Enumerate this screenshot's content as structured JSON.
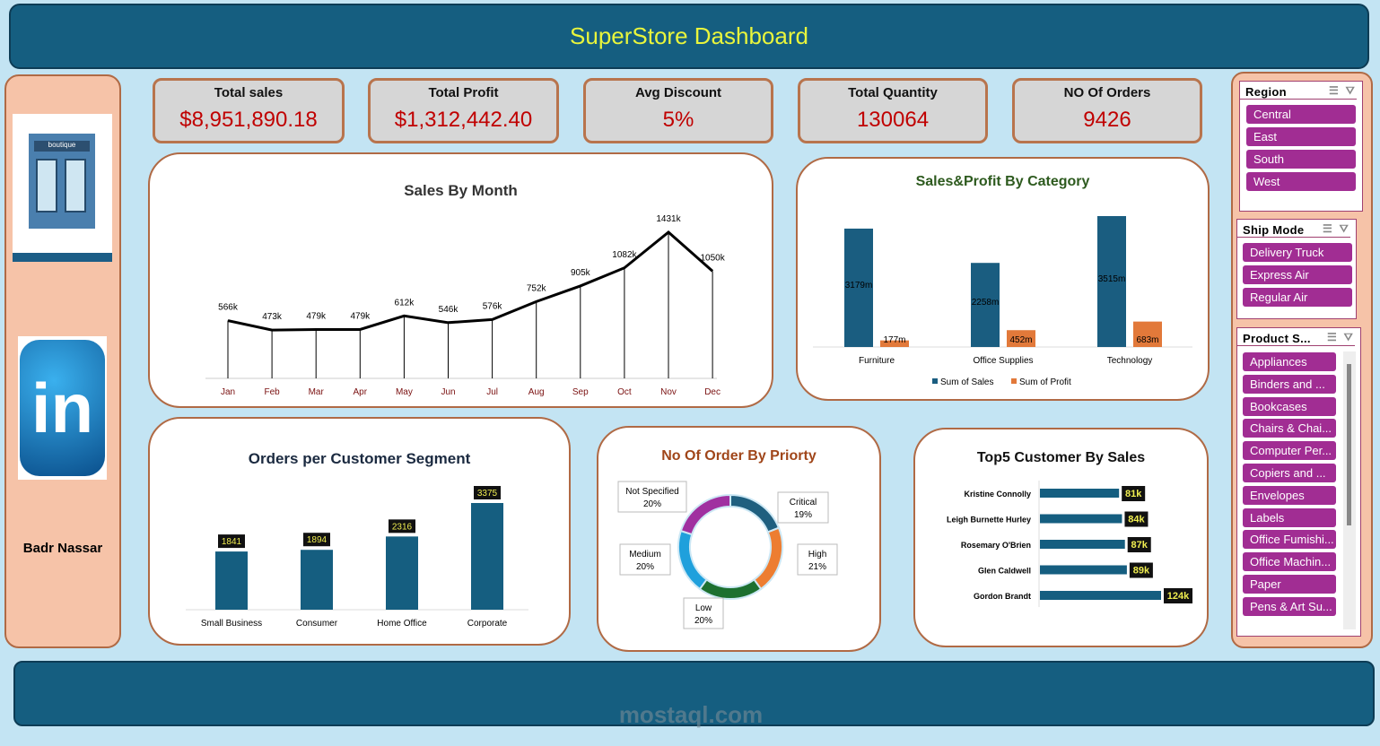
{
  "header": {
    "title": "SuperStore Dashboard"
  },
  "profile": {
    "name": "Badr Nassar",
    "boutique_sign": "boutique",
    "linkedin_logo": "in"
  },
  "kpis": [
    {
      "label": "Total sales",
      "value": "$8,951,890.18"
    },
    {
      "label": "Total Profit",
      "value": "$1,312,442.40"
    },
    {
      "label": "Avg Discount",
      "value": "5%"
    },
    {
      "label": "Total Quantity",
      "value": "130064"
    },
    {
      "label": "NO Of Orders",
      "value": "9426"
    }
  ],
  "colors": {
    "header": "#155e80",
    "title": "#e9f53c",
    "kpi_value": "#c00000",
    "sales": "#1a5d80",
    "profit": "#e2793a",
    "slicer_item": "#a12d93"
  },
  "chart_data": [
    {
      "type": "line",
      "title": "Sales By Month",
      "categories": [
        "Jan",
        "Feb",
        "Mar",
        "Apr",
        "May",
        "Jun",
        "Jul",
        "Aug",
        "Sep",
        "Oct",
        "Nov",
        "Dec"
      ],
      "values": [
        566,
        473,
        479,
        479,
        612,
        546,
        576,
        752,
        905,
        1082,
        1431,
        1050
      ],
      "labels": [
        "566k",
        "473k",
        "479k",
        "479k",
        "612k",
        "546k",
        "576k",
        "752k",
        "905k",
        "1082k",
        "1431k",
        "1050k"
      ],
      "unit": "k"
    },
    {
      "type": "bar",
      "title": "Sales&Profit By Category",
      "categories": [
        "Furniture",
        "Office Supplies",
        "Technology"
      ],
      "series": [
        {
          "name": "Sum of Sales",
          "values": [
            3179,
            2258,
            3515
          ],
          "labels": [
            "3179m",
            "2258m",
            "3515m"
          ],
          "color": "#1a5d80"
        },
        {
          "name": "Sum of Profit",
          "values": [
            177,
            452,
            683
          ],
          "labels": [
            "177m",
            "452m",
            "683m"
          ],
          "color": "#e2793a"
        }
      ],
      "legend": "bottom"
    },
    {
      "type": "bar",
      "title": "Orders per Customer Segment",
      "categories": [
        "Small Business",
        "Consumer",
        "Home Office",
        "Corporate"
      ],
      "values": [
        1841,
        1894,
        2316,
        3375
      ]
    },
    {
      "type": "pie",
      "title": "No Of Order By Priorty",
      "slices": [
        {
          "label": "Critical",
          "value": 19,
          "text": "19%",
          "color": "#1f5f7f"
        },
        {
          "label": "High",
          "value": 21,
          "text": "21%",
          "color": "#ed7d31"
        },
        {
          "label": "Low",
          "value": 20,
          "text": "20%",
          "color": "#1d7030"
        },
        {
          "label": "Medium",
          "value": 20,
          "text": "20%",
          "color": "#1fa0dc"
        },
        {
          "label": "Not Specified",
          "value": 20,
          "text": "20%",
          "color": "#a030a0"
        }
      ]
    },
    {
      "type": "bar",
      "title": "Top5 Customer By Sales",
      "orientation": "horizontal",
      "categories": [
        "Kristine Connolly",
        "Leigh Burnette Hurley",
        "Rosemary O'Brien",
        "Glen Caldwell",
        "Gordon Brandt"
      ],
      "values": [
        81,
        84,
        87,
        89,
        124
      ],
      "labels": [
        "81k",
        "84k",
        "87k",
        "89k",
        "124k"
      ]
    }
  ],
  "slicers": [
    {
      "title": "Region",
      "items": [
        "Central",
        "East",
        "South",
        "West"
      ]
    },
    {
      "title": "Ship Mode",
      "items": [
        "Delivery Truck",
        "Express Air",
        "Regular Air"
      ]
    },
    {
      "title": "Product S...",
      "items": [
        "Appliances",
        "Binders and ...",
        "Bookcases",
        "Chairs & Chai...",
        "Computer Per...",
        "Copiers and ...",
        "Envelopes",
        "Labels",
        "Office Fumishi...",
        "Office Machin...",
        "Paper",
        "Pens & Art Su..."
      ]
    }
  ],
  "watermark": "mostaql.com"
}
